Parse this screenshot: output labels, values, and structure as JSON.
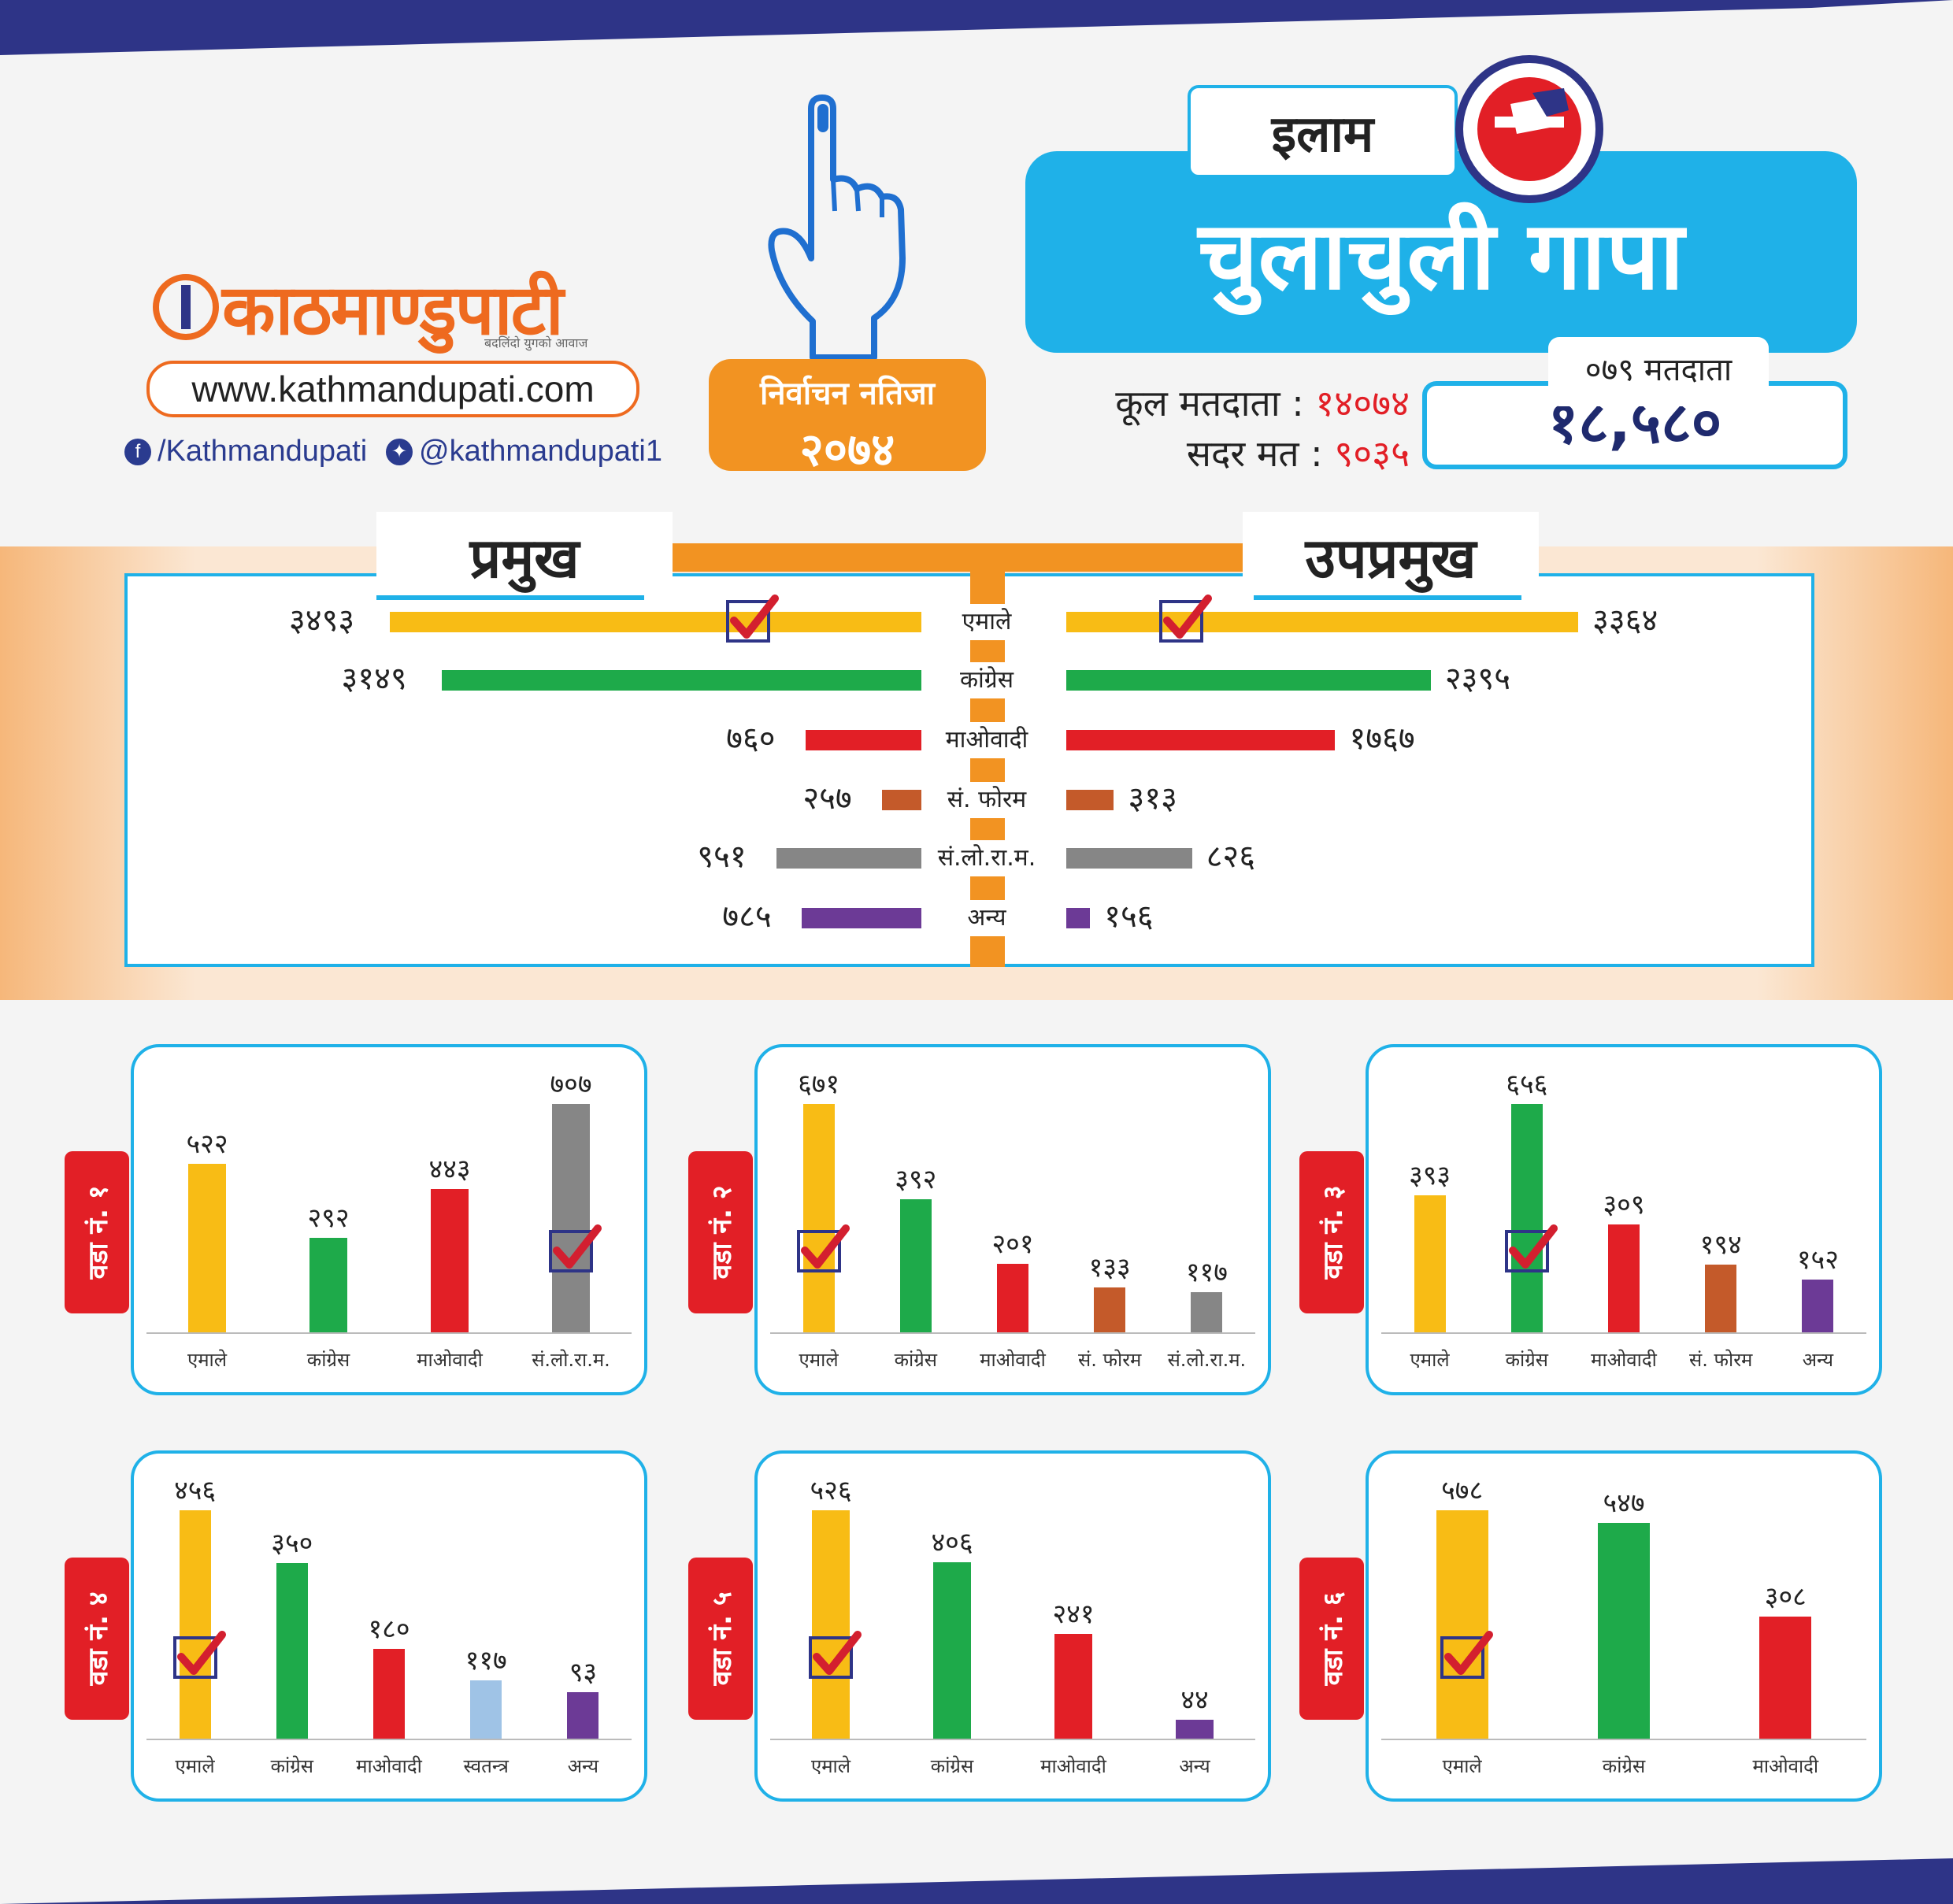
{
  "colors": {
    "navy": "#2e3487",
    "sky": "#1fb1e8",
    "orange": "#f29322",
    "red": "#e21f26",
    "UML": "#f8bc15",
    "Congress": "#1eaa4a",
    "Maoist": "#e21f26",
    "SFourm": "#c45a2a",
    "SLRM": "#868686",
    "Other": "#6c3a96",
    "Independent": "#9fc3e6"
  },
  "brand": {
    "logo_text": "काठमाण्डुपाटी",
    "tagline": "बदलिंदो युगको आवाज",
    "url": "www.kathmandupati.com",
    "facebook": "/Kathmandupati",
    "twitter": "@kathmandupati1",
    "icons": [
      "finger-icon",
      "facebook-icon",
      "twitter-icon",
      "ballot-icon"
    ]
  },
  "header": {
    "result_label": "निर्वाचन नतिजा",
    "result_year": "२०७४",
    "district": "इलाम",
    "municipality": "चुलाचुली गापा",
    "total_voters_label": "कूल मतदाता",
    "total_voters": "१४०७४",
    "valid_votes_label": "सदर मत",
    "valid_votes": "९०३५",
    "voters_079_label": "०७९ मतदाता",
    "voters_079": "१८,५८०"
  },
  "summary": {
    "chief_label": "प्रमुख",
    "deputy_label": "उपप्रमुख",
    "parties": [
      "एमाले",
      "कांग्रेस",
      "माओवादी",
      "सं. फोरम",
      "सं.लो.रा.म.",
      "अन्य"
    ]
  },
  "chart_data": [
    {
      "type": "bar",
      "title": "प्रमुख",
      "categories": [
        "एमाले",
        "कांग्रेस",
        "माओवादी",
        "सं. फोरम",
        "सं.लो.रा.म.",
        "अन्य"
      ],
      "values": [
        3493,
        3149,
        760,
        257,
        951,
        785
      ],
      "value_labels": [
        "३४९३",
        "३१४९",
        "७६०",
        "२५७",
        "९५१",
        "७८५"
      ],
      "winner": "एमाले"
    },
    {
      "type": "bar",
      "title": "उपप्रमुख",
      "categories": [
        "एमाले",
        "कांग्रेस",
        "माओवादी",
        "सं. फोरम",
        "सं.लो.रा.म.",
        "अन्य"
      ],
      "values": [
        3364,
        2395,
        1767,
        313,
        826,
        156
      ],
      "value_labels": [
        "३३६४",
        "२३९५",
        "१७६७",
        "३१३",
        "८२६",
        "१५६"
      ],
      "winner": "एमाले"
    },
    {
      "type": "bar",
      "title": "वडा नं. १",
      "categories": [
        "एमाले",
        "कांग्रेस",
        "माओवादी",
        "सं.लो.रा.म."
      ],
      "values": [
        522,
        292,
        443,
        707
      ],
      "value_labels": [
        "५२२",
        "२९२",
        "४४३",
        "७०७"
      ],
      "winner": "सं.लो.रा.म."
    },
    {
      "type": "bar",
      "title": "वडा नं. २",
      "categories": [
        "एमाले",
        "कांग्रेस",
        "माओवादी",
        "सं. फोरम",
        "सं.लो.रा.म."
      ],
      "values": [
        671,
        392,
        201,
        133,
        117
      ],
      "value_labels": [
        "६७१",
        "३९२",
        "२०१",
        "१३३",
        "११७"
      ],
      "winner": "एमाले"
    },
    {
      "type": "bar",
      "title": "वडा नं. ३",
      "categories": [
        "एमाले",
        "कांग्रेस",
        "माओवादी",
        "सं. फोरम",
        "अन्य"
      ],
      "values": [
        393,
        656,
        309,
        194,
        152
      ],
      "value_labels": [
        "३९३",
        "६५६",
        "३०९",
        "१९४",
        "१५२"
      ],
      "winner": "कांग्रेस"
    },
    {
      "type": "bar",
      "title": "वडा नं. ४",
      "categories": [
        "एमाले",
        "कांग्रेस",
        "माओवादी",
        "स्वतन्त्र",
        "अन्य"
      ],
      "values": [
        456,
        350,
        180,
        117,
        93
      ],
      "value_labels": [
        "४५६",
        "३५०",
        "१८०",
        "११७",
        "९३"
      ],
      "winner": "एमाले"
    },
    {
      "type": "bar",
      "title": "वडा नं. ५",
      "categories": [
        "एमाले",
        "कांग्रेस",
        "माओवादी",
        "अन्य"
      ],
      "values": [
        526,
        406,
        241,
        44
      ],
      "value_labels": [
        "५२६",
        "४०६",
        "२४१",
        "४४"
      ],
      "winner": "एमाले"
    },
    {
      "type": "bar",
      "title": "वडा नं. ६",
      "categories": [
        "एमाले",
        "कांग्रेस",
        "माओवादी"
      ],
      "values": [
        578,
        547,
        308
      ],
      "value_labels": [
        "५७८",
        "५४७",
        "३०८"
      ],
      "winner": "एमाले"
    }
  ]
}
